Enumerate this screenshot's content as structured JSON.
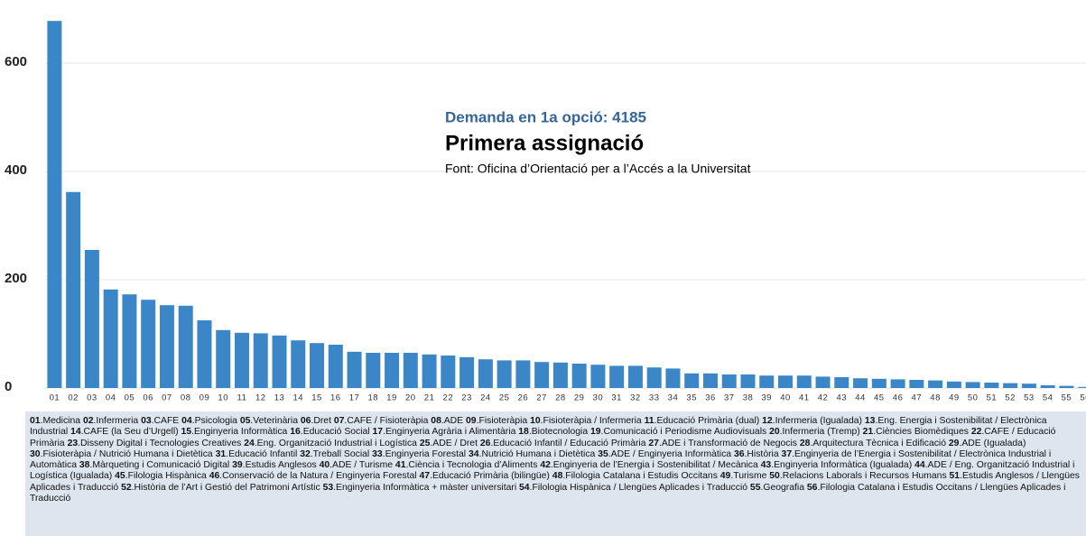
{
  "chart_data": {
    "type": "bar",
    "annotation": "Demanda en 1a opció: 4185",
    "title": "Primera assignació",
    "subtitle": "Font: Oficina d’Orientació per a  l’Accés a la Universitat",
    "categories": [
      "01",
      "02",
      "03",
      "04",
      "05",
      "06",
      "07",
      "08",
      "09",
      "10",
      "11",
      "12",
      "13",
      "14",
      "15",
      "16",
      "17",
      "18",
      "19",
      "20",
      "21",
      "22",
      "23",
      "24",
      "25",
      "26",
      "27",
      "28",
      "29",
      "30",
      "31",
      "32",
      "33",
      "34",
      "35",
      "36",
      "37",
      "38",
      "39",
      "40",
      "41",
      "42",
      "43",
      "44",
      "45",
      "46",
      "47",
      "48",
      "49",
      "50",
      "51",
      "52",
      "53",
      "54",
      "55",
      "56"
    ],
    "values": [
      678,
      362,
      255,
      182,
      173,
      163,
      153,
      152,
      125,
      107,
      102,
      101,
      97,
      88,
      83,
      80,
      67,
      65,
      65,
      65,
      62,
      60,
      57,
      53,
      51,
      51,
      48,
      47,
      45,
      43,
      41,
      41,
      38,
      36,
      27,
      27,
      25,
      25,
      23,
      23,
      23,
      21,
      20,
      18,
      17,
      16,
      15,
      14,
      12,
      11,
      10,
      9,
      8,
      5,
      4,
      2
    ],
    "category_names": [
      "Medicina",
      "Infermeria",
      "CAFE",
      "Psicologia",
      "Veterinària",
      "Dret",
      "CAFE / Fisioteràpia",
      "ADE",
      "Fisioteràpia",
      "Fisioteràpia / Infermeria",
      "Educació Primària (dual)",
      "Infermeria (Igualada)",
      "Eng. Energia i Sostenibilitat / Electrònica Industrial",
      "CAFE (la Seu d’Urgell)",
      "Enginyeria Informàtica",
      "Educació Social",
      "Enginyeria Agrària i Alimentària",
      "Biotecnologia",
      "Comunicació i Periodisme Audiovisuals",
      "Infermeria (Tremp)",
      "Ciències Biomèdiques",
      "CAFE / Educació Primària",
      "Disseny Digital i Tecnologies Creatives",
      "Eng. Organització Industrial i Logística",
      "ADE / Dret",
      "Educació Infantil / Educació Primària",
      "ADE i Transformació de Negocis",
      "Arquitectura Tècnica i Edificació",
      "ADE (Igualada)",
      "Fisioteràpia / Nutrició Humana i Dietètica",
      "Educació Infantil",
      "Treball Social",
      "Enginyeria Forestal",
      "Nutrició Humana i Dietètica",
      "ADE / Enginyeria Informàtica",
      "Història",
      "Enginyeria de l’Energia i Sostenibilitat / Electrònica Industrial i Automàtica",
      "Màrqueting i Comunicació Digital",
      "Estudis Anglesos",
      "ADE / Turisme",
      "Ciència i Tecnologia d’Aliments",
      "Enginyeria de l’Energia i Sostenibilitat / Mecànica",
      "Enginyeria Informàtica (Igualada)",
      "ADE / Eng. Organització Industrial i Logística (Igualada)",
      "Filologia Hispànica",
      "Conservació de la Natura / Enginyeria Forestal",
      "Educació Primària (bilingüe)",
      "Filologia Catalana i Estudis Occitans",
      "Turisme",
      "Relacions Laborals i Recursos Humans",
      "Estudis Anglesos / Llengües Aplicades i Traducció",
      "Història de l’Art i Gestió del Patrimoni Artístic",
      "Enginyeria Informàtica + màster universitari",
      "Filologia Hispànica / Llengües Aplicades i Traducció",
      "Geografia",
      "Filologia Catalana i Estudis Occitans / Llengües Aplicades i Traducció"
    ],
    "color": "#3a86c6",
    "ylim": [
      0,
      700
    ],
    "yticks": [
      0,
      200,
      400,
      600
    ],
    "grid": true
  }
}
